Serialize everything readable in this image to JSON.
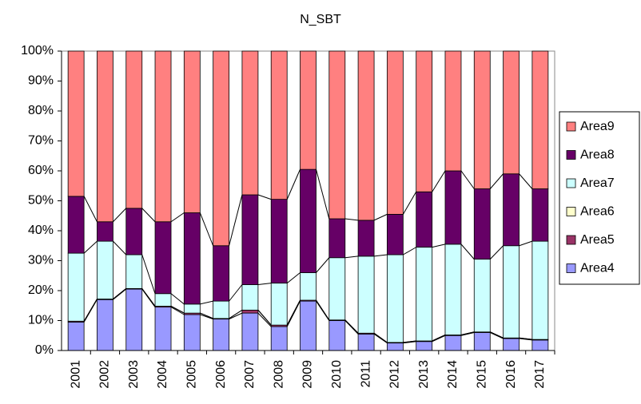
{
  "chart_data": {
    "type": "stacked_bar_percent",
    "title": "N_SBT",
    "categories": [
      "2001",
      "2002",
      "2003",
      "2004",
      "2005",
      "2006",
      "2007",
      "2008",
      "2009",
      "2010",
      "2011",
      "2012",
      "2013",
      "2014",
      "2015",
      "2016",
      "2017"
    ],
    "series": [
      {
        "name": "Area4",
        "color": "#9999ff",
        "values": [
          9.5,
          17,
          20.5,
          14.5,
          12,
          10.5,
          12.5,
          8,
          16.5,
          10,
          5.5,
          2.5,
          3,
          5,
          6,
          4,
          3.5
        ]
      },
      {
        "name": "Area5",
        "color": "#993366",
        "values": [
          0.3,
          0.2,
          0.2,
          0.3,
          0.5,
          0.2,
          1,
          0.5,
          0.3,
          0.2,
          0.3,
          0.2,
          0.2,
          0.2,
          0.2,
          0.2,
          0.2
        ]
      },
      {
        "name": "Area6",
        "color": "#ffffcc",
        "values": [
          0,
          0,
          0,
          0,
          0,
          0,
          0,
          0,
          0,
          0,
          0,
          0,
          0,
          0,
          0,
          0,
          0
        ]
      },
      {
        "name": "Area7",
        "color": "#ccffff",
        "values": [
          22.7,
          19.3,
          11.3,
          4.2,
          3,
          5.8,
          8.5,
          14,
          9.2,
          20.8,
          25.7,
          29.3,
          31.3,
          30.3,
          24.3,
          30.8,
          32.8
        ]
      },
      {
        "name": "Area8",
        "color": "#660066",
        "values": [
          19,
          6.5,
          15.5,
          24,
          30.5,
          18.5,
          30,
          28,
          34.5,
          13,
          12,
          13.5,
          18.5,
          24.5,
          23.5,
          24,
          17.5
        ]
      },
      {
        "name": "Area9",
        "color": "#ff8080",
        "values": [
          48.5,
          57,
          52.5,
          57,
          54,
          65,
          48,
          49.5,
          39.5,
          56,
          56.5,
          54.5,
          47,
          40,
          46,
          41,
          46
        ]
      }
    ],
    "ylim": [
      0,
      100
    ],
    "yticks": [
      {
        "value": 0,
        "label": "0%"
      },
      {
        "value": 10,
        "label": "10%"
      },
      {
        "value": 20,
        "label": "20%"
      },
      {
        "value": 30,
        "label": "30%"
      },
      {
        "value": 40,
        "label": "40%"
      },
      {
        "value": 50,
        "label": "50%"
      },
      {
        "value": 60,
        "label": "60%"
      },
      {
        "value": 70,
        "label": "70%"
      },
      {
        "value": 80,
        "label": "80%"
      },
      {
        "value": 90,
        "label": "90%"
      },
      {
        "value": 100,
        "label": "100%"
      }
    ],
    "grid": false,
    "legend": "right"
  }
}
